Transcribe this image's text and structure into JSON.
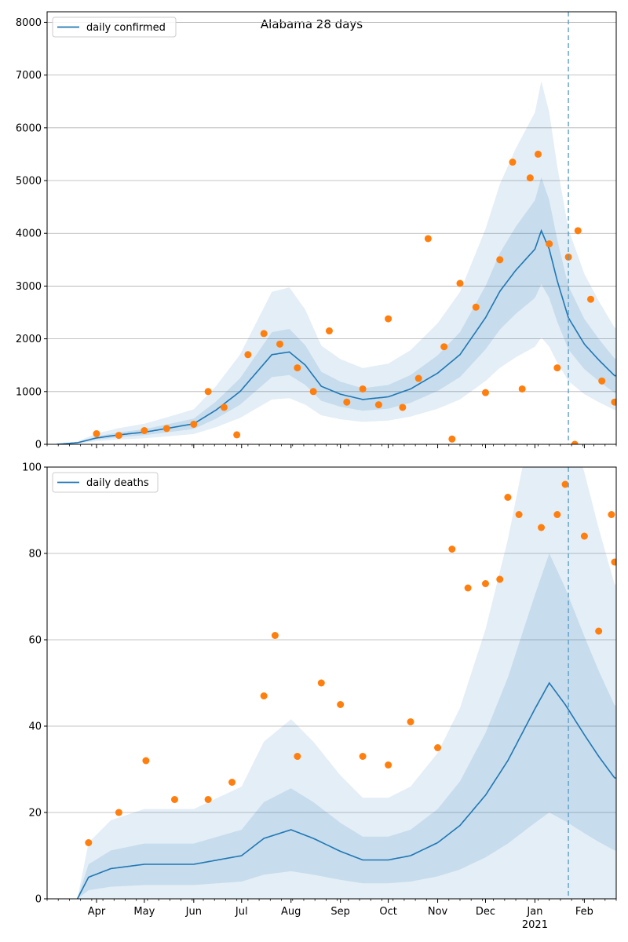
{
  "figure": {
    "title": "Alabama 28 days"
  },
  "chart_data": [
    {
      "type": "line",
      "title": "Alabama 28 days",
      "legend": {
        "label": "daily confirmed",
        "placement": "top-left"
      },
      "ylim": [
        0,
        8200
      ],
      "yticks": [
        0,
        1000,
        2000,
        3000,
        4000,
        5000,
        6000,
        7000,
        8000
      ],
      "grid": "horizontal",
      "forecast_start": "2021-01-22",
      "colors": {
        "line": "#1f77b4",
        "points": "#ff7f0e",
        "band": "#1f77b4"
      },
      "mean_anchors": [
        [
          "2020-03-07",
          0
        ],
        [
          "2020-03-20",
          30
        ],
        [
          "2020-04-01",
          120
        ],
        [
          "2020-04-15",
          180
        ],
        [
          "2020-05-01",
          230
        ],
        [
          "2020-05-15",
          300
        ],
        [
          "2020-06-01",
          390
        ],
        [
          "2020-06-15",
          650
        ],
        [
          "2020-06-30",
          1000
        ],
        [
          "2020-07-10",
          1350
        ],
        [
          "2020-07-20",
          1700
        ],
        [
          "2020-07-31",
          1750
        ],
        [
          "2020-08-10",
          1500
        ],
        [
          "2020-08-20",
          1100
        ],
        [
          "2020-09-01",
          950
        ],
        [
          "2020-09-15",
          850
        ],
        [
          "2020-10-01",
          900
        ],
        [
          "2020-10-15",
          1050
        ],
        [
          "2020-11-01",
          1350
        ],
        [
          "2020-11-15",
          1700
        ],
        [
          "2020-12-01",
          2400
        ],
        [
          "2020-12-10",
          2900
        ],
        [
          "2020-12-20",
          3300
        ],
        [
          "2021-01-01",
          3700
        ],
        [
          "2021-01-05",
          4050
        ],
        [
          "2021-01-10",
          3700
        ],
        [
          "2021-01-15",
          3100
        ],
        [
          "2021-01-22",
          2400
        ],
        [
          "2021-02-01",
          1900
        ],
        [
          "2021-02-10",
          1600
        ],
        [
          "2021-02-20",
          1300
        ]
      ],
      "band_inner_scale": [
        0.75,
        1.25
      ],
      "band_outer_scale": [
        0.5,
        1.7
      ],
      "observed": [
        [
          "2020-04-01",
          200
        ],
        [
          "2020-04-15",
          170
        ],
        [
          "2020-05-01",
          260
        ],
        [
          "2020-05-15",
          300
        ],
        [
          "2020-06-01",
          380
        ],
        [
          "2020-06-10",
          1000
        ],
        [
          "2020-06-20",
          700
        ],
        [
          "2020-06-28",
          180
        ],
        [
          "2020-07-05",
          1700
        ],
        [
          "2020-07-15",
          2100
        ],
        [
          "2020-07-25",
          1900
        ],
        [
          "2020-08-05",
          1450
        ],
        [
          "2020-08-15",
          1000
        ],
        [
          "2020-08-25",
          2150
        ],
        [
          "2020-09-05",
          800
        ],
        [
          "2020-09-15",
          1050
        ],
        [
          "2020-09-25",
          750
        ],
        [
          "2020-10-01",
          2380
        ],
        [
          "2020-10-10",
          700
        ],
        [
          "2020-10-20",
          1250
        ],
        [
          "2020-10-26",
          3900
        ],
        [
          "2020-11-05",
          1850
        ],
        [
          "2020-11-10",
          100
        ],
        [
          "2020-11-15",
          3050
        ],
        [
          "2020-11-25",
          2600
        ],
        [
          "2020-12-01",
          980
        ],
        [
          "2020-12-10",
          3500
        ],
        [
          "2020-12-18",
          5350
        ],
        [
          "2020-12-24",
          1050
        ],
        [
          "2020-12-29",
          5050
        ],
        [
          "2021-01-03",
          5500
        ],
        [
          "2021-01-10",
          3800
        ],
        [
          "2021-01-15",
          1450
        ],
        [
          "2021-01-22",
          3550
        ],
        [
          "2021-01-26",
          0
        ],
        [
          "2021-01-28",
          4050
        ],
        [
          "2021-02-05",
          2750
        ],
        [
          "2021-02-12",
          1200
        ],
        [
          "2021-02-20",
          800
        ]
      ]
    },
    {
      "type": "line",
      "legend": {
        "label": "daily deaths",
        "placement": "top-left"
      },
      "ylim": [
        0,
        100
      ],
      "yticks": [
        0,
        20,
        40,
        60,
        80,
        100
      ],
      "grid": "horizontal",
      "forecast_start": "2021-01-22",
      "xticks": [
        {
          "date": "2020-04-01",
          "label": "Apr"
        },
        {
          "date": "2020-05-01",
          "label": "May"
        },
        {
          "date": "2020-06-01",
          "label": "Jun"
        },
        {
          "date": "2020-07-01",
          "label": "Jul"
        },
        {
          "date": "2020-08-01",
          "label": "Aug"
        },
        {
          "date": "2020-09-01",
          "label": "Sep"
        },
        {
          "date": "2020-10-01",
          "label": "Oct"
        },
        {
          "date": "2020-11-01",
          "label": "Nov"
        },
        {
          "date": "2020-12-01",
          "label": "Dec"
        },
        {
          "date": "2021-01-01",
          "label": "Jan"
        },
        {
          "date": "2021-02-01",
          "label": "Feb"
        }
      ],
      "xtick_year": {
        "date": "2021-01-01",
        "label": "2021"
      },
      "xlim": [
        "2020-03-01",
        "2021-02-21"
      ],
      "colors": {
        "line": "#1f77b4",
        "points": "#ff7f0e",
        "band": "#1f77b4"
      },
      "mean_anchors": [
        [
          "2020-03-20",
          0
        ],
        [
          "2020-03-27",
          5
        ],
        [
          "2020-04-10",
          7
        ],
        [
          "2020-05-01",
          8
        ],
        [
          "2020-06-01",
          8
        ],
        [
          "2020-07-01",
          10
        ],
        [
          "2020-07-15",
          14
        ],
        [
          "2020-08-01",
          16
        ],
        [
          "2020-08-15",
          14
        ],
        [
          "2020-09-01",
          11
        ],
        [
          "2020-09-15",
          9
        ],
        [
          "2020-10-01",
          9
        ],
        [
          "2020-10-15",
          10
        ],
        [
          "2020-11-01",
          13
        ],
        [
          "2020-11-15",
          17
        ],
        [
          "2020-12-01",
          24
        ],
        [
          "2020-12-15",
          32
        ],
        [
          "2021-01-01",
          44
        ],
        [
          "2021-01-10",
          50
        ],
        [
          "2021-01-20",
          45
        ],
        [
          "2021-02-01",
          38
        ],
        [
          "2021-02-10",
          33
        ],
        [
          "2021-02-20",
          28
        ]
      ],
      "band_inner_scale": [
        0.4,
        1.6
      ],
      "band_outer_scale": [
        0,
        2.6
      ],
      "observed": [
        [
          "2020-03-27",
          13
        ],
        [
          "2020-04-15",
          20
        ],
        [
          "2020-05-02",
          32
        ],
        [
          "2020-05-20",
          23
        ],
        [
          "2020-06-10",
          23
        ],
        [
          "2020-06-25",
          27
        ],
        [
          "2020-07-15",
          47
        ],
        [
          "2020-07-22",
          61
        ],
        [
          "2020-08-05",
          33
        ],
        [
          "2020-08-20",
          50
        ],
        [
          "2020-09-01",
          45
        ],
        [
          "2020-09-15",
          33
        ],
        [
          "2020-10-01",
          31
        ],
        [
          "2020-10-15",
          41
        ],
        [
          "2020-11-01",
          35
        ],
        [
          "2020-11-10",
          81
        ],
        [
          "2020-11-20",
          72
        ],
        [
          "2020-12-01",
          73
        ],
        [
          "2020-12-10",
          74
        ],
        [
          "2020-12-15",
          93
        ],
        [
          "2020-12-22",
          89
        ],
        [
          "2021-01-05",
          86
        ],
        [
          "2021-01-15",
          89
        ],
        [
          "2021-01-20",
          96
        ],
        [
          "2021-02-01",
          84
        ],
        [
          "2021-02-10",
          62
        ],
        [
          "2021-02-18",
          89
        ],
        [
          "2021-02-20",
          78
        ]
      ]
    }
  ]
}
